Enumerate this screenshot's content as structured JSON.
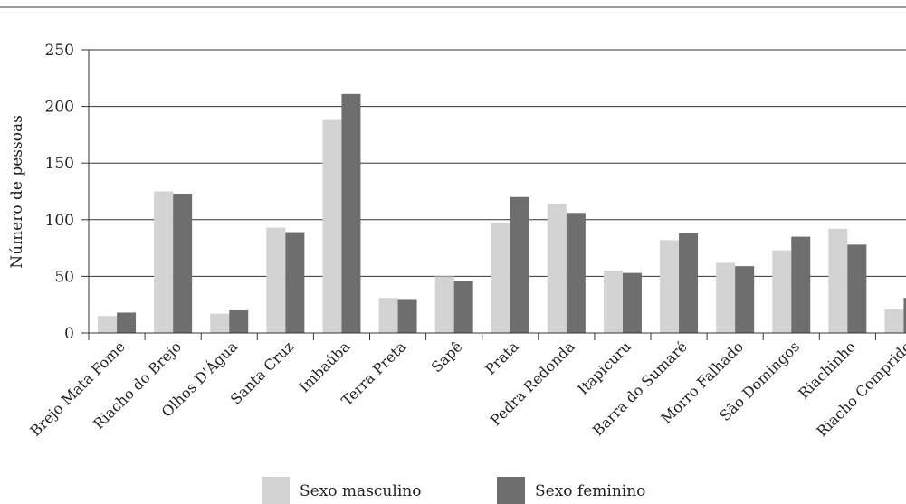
{
  "chart_data": {
    "type": "bar",
    "ylabel": "Número de pessoas",
    "ylim": [
      0,
      250
    ],
    "yticks": [
      0,
      50,
      100,
      150,
      200,
      250
    ],
    "grid": true,
    "legend_position": "bottom",
    "categories": [
      "Brejo Mata Fome",
      "Riacho do Brejo",
      "Olhos D'Água",
      "Santa Cruz",
      "Imbaúba",
      "Terra Preta",
      "Sapê",
      "Prata",
      "Pedra Redonda",
      "Itapicuru",
      "Barra do Sumaré",
      "Morro Falhado",
      "São Domingos",
      "Riachinho",
      "Riacho Comprido"
    ],
    "series": [
      {
        "name": "Sexo masculino",
        "color": "#d3d3d3",
        "values": [
          15,
          125,
          17,
          93,
          188,
          31,
          50,
          97,
          114,
          55,
          82,
          62,
          73,
          92,
          21
        ]
      },
      {
        "name": "Sexo feminino",
        "color": "#6e6e6e",
        "values": [
          18,
          123,
          20,
          89,
          211,
          30,
          46,
          120,
          106,
          53,
          88,
          59,
          85,
          78,
          31
        ]
      }
    ]
  }
}
